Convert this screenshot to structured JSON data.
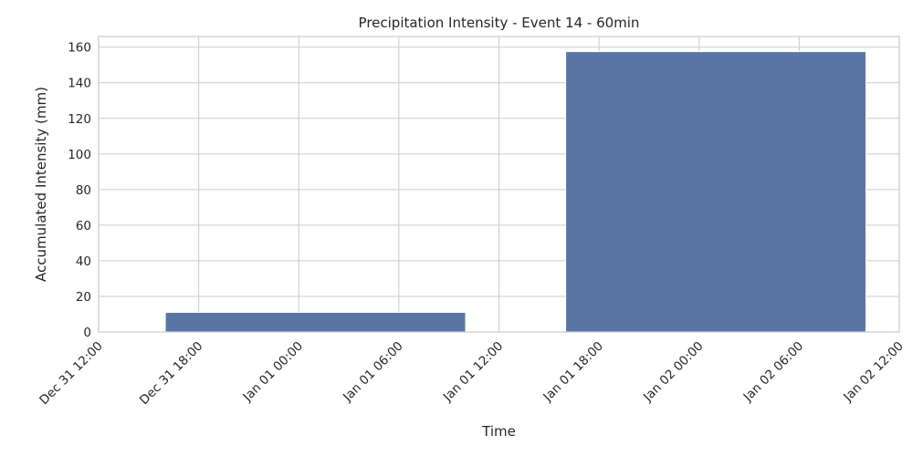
{
  "chart_data": {
    "type": "bar",
    "title": "Precipitation Intensity - Event 14 - 60min",
    "xlabel": "Time",
    "ylabel": "Accumulated Intensity (mm)",
    "x_axis": {
      "type": "time",
      "range": [
        "Dec 31 12:00",
        "Jan 02 12:00"
      ],
      "ticks": [
        "Dec 31 12:00",
        "Dec 31 18:00",
        "Jan 01 00:00",
        "Jan 01 06:00",
        "Jan 01 12:00",
        "Jan 01 18:00",
        "Jan 02 00:00",
        "Jan 02 06:00",
        "Jan 02 12:00"
      ]
    },
    "y_axis": {
      "ylim": [
        0,
        166
      ],
      "ticks": [
        0,
        20,
        40,
        60,
        80,
        100,
        120,
        140,
        160
      ]
    },
    "bars": [
      {
        "start": "Dec 31 16:00",
        "end": "Jan 01 10:00",
        "value": 11
      },
      {
        "start": "Jan 01 16:00",
        "end": "Jan 02 10:00",
        "value": 157.5
      }
    ],
    "grid": true,
    "legend": "none",
    "colors": {
      "bar": "#5975a4",
      "grid": "#cccccc",
      "background": "#ffffff",
      "text": "#262626"
    }
  }
}
